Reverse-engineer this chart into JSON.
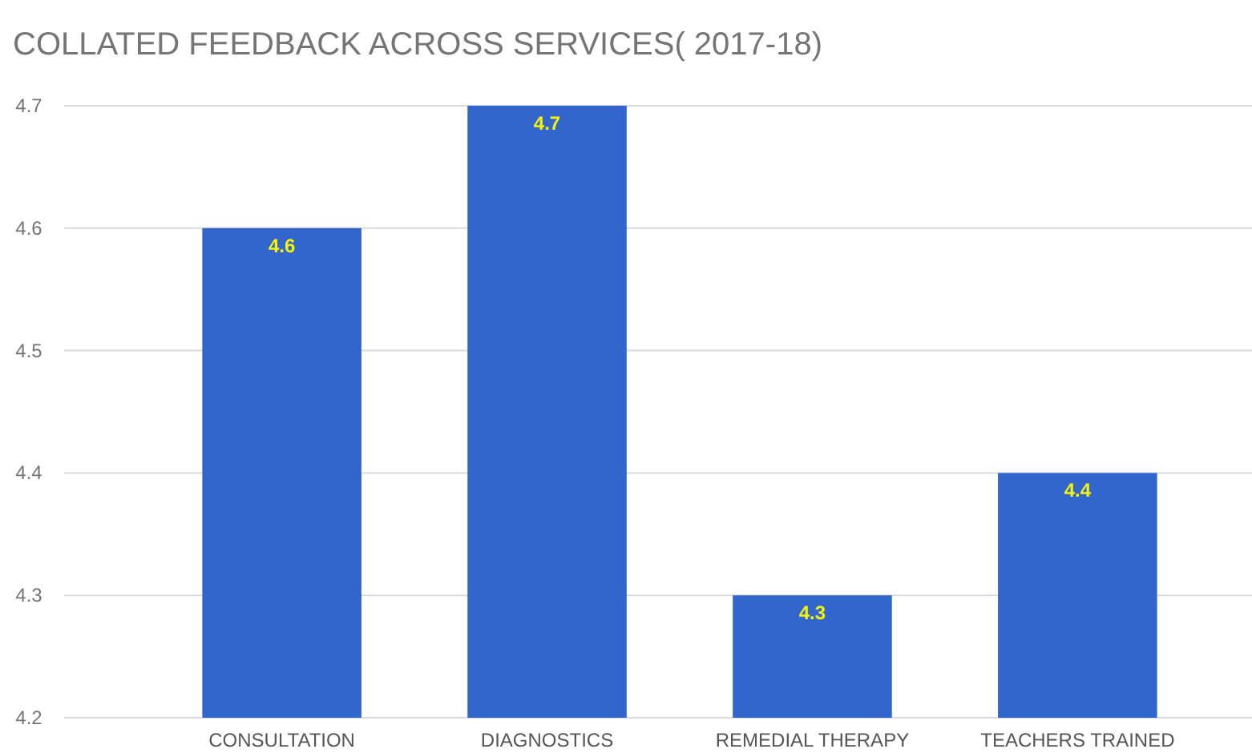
{
  "chart_data": {
    "type": "bar",
    "title": "COLLATED FEEDBACK ACROSS SERVICES( 2017-18)",
    "categories": [
      "CONSULTATION",
      "DIAGNOSTICS",
      "REMEDIAL THERAPY",
      "TEACHERS TRAINED"
    ],
    "values": [
      4.6,
      4.7,
      4.3,
      4.4
    ],
    "color": "#3366cc",
    "ylim": [
      4.2,
      4.7
    ],
    "yticks": [
      4.2,
      4.3,
      4.4,
      4.5,
      4.6,
      4.7
    ],
    "grid": "y",
    "data_labels": true
  }
}
